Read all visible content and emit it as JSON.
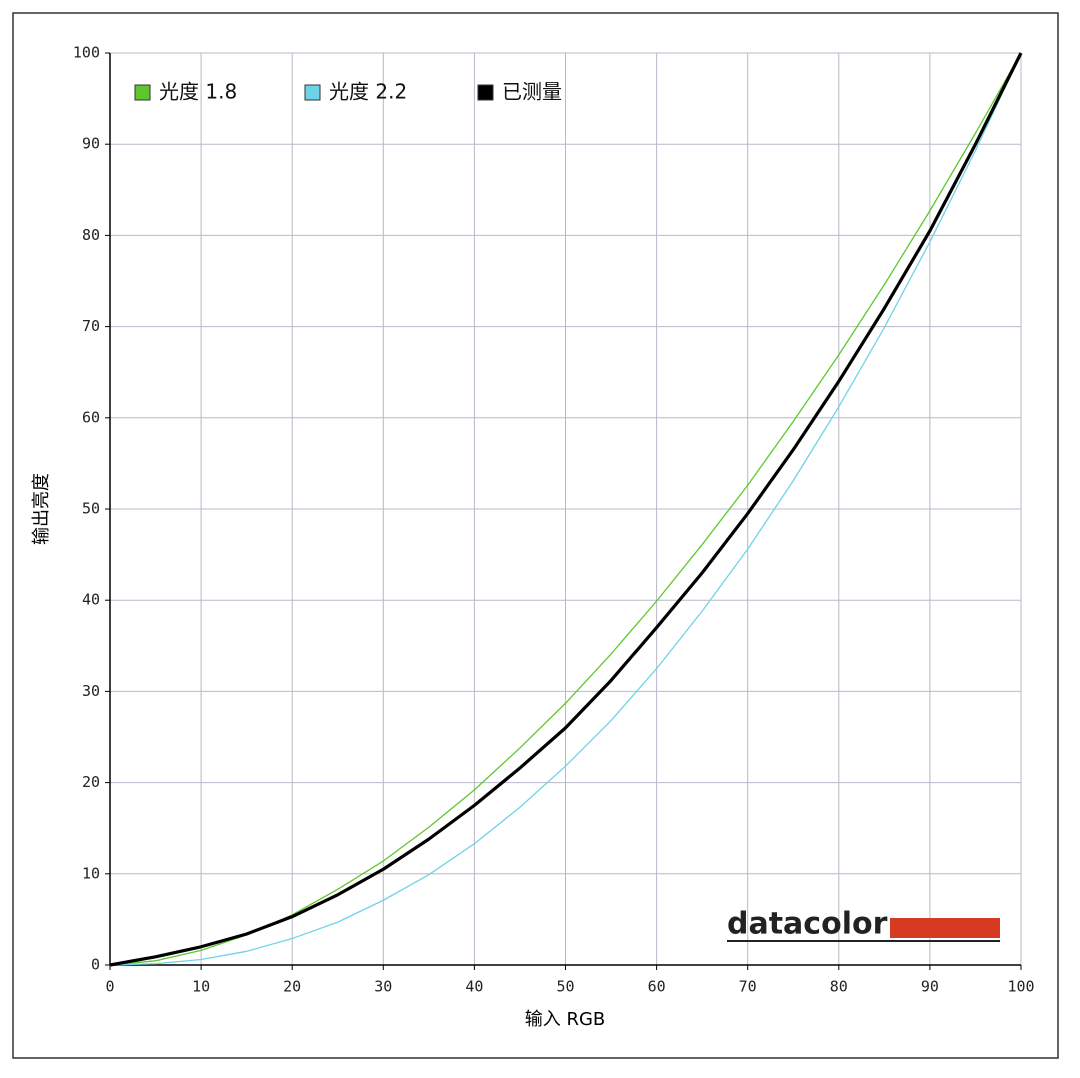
{
  "chart_data": {
    "type": "line",
    "x_label": "输入 RGB",
    "y_label": "输出亮度",
    "x": [
      0,
      5,
      10,
      15,
      20,
      25,
      30,
      35,
      40,
      45,
      50,
      55,
      60,
      65,
      70,
      75,
      80,
      85,
      90,
      95,
      100
    ],
    "series": [
      {
        "name": "光度 1.8",
        "color": "#5fc72e",
        "values": [
          0,
          0.46,
          1.6,
          3.3,
          5.5,
          8.3,
          11.4,
          15.1,
          19.2,
          23.8,
          28.7,
          34.1,
          39.9,
          46.1,
          52.6,
          59.6,
          66.9,
          74.6,
          82.7,
          91.2,
          100
        ]
      },
      {
        "name": "光度 2.2",
        "color": "#6fd3e8",
        "values": [
          0,
          0.14,
          0.6,
          1.5,
          2.9,
          4.7,
          7.1,
          9.9,
          13.3,
          17.3,
          21.8,
          26.8,
          32.5,
          38.8,
          45.6,
          53.1,
          61.2,
          69.9,
          79.3,
          89.3,
          100
        ]
      },
      {
        "name": "已测量",
        "color": "#000000",
        "values": [
          0,
          0.9,
          2,
          3.4,
          5.3,
          7.7,
          10.5,
          13.8,
          17.5,
          21.6,
          26,
          31.2,
          37,
          43,
          49.5,
          56.5,
          64,
          72,
          80.5,
          90,
          100
        ]
      }
    ],
    "xlim": [
      0,
      100
    ],
    "xticks": [
      0,
      10,
      20,
      30,
      40,
      50,
      60,
      70,
      80,
      90,
      100
    ],
    "ylim": [
      0,
      100
    ],
    "yticks": [
      0,
      10,
      20,
      30,
      40,
      50,
      60,
      70,
      80,
      90,
      100
    ],
    "grid": true,
    "legend": "top-left",
    "logo": "datacolor"
  }
}
